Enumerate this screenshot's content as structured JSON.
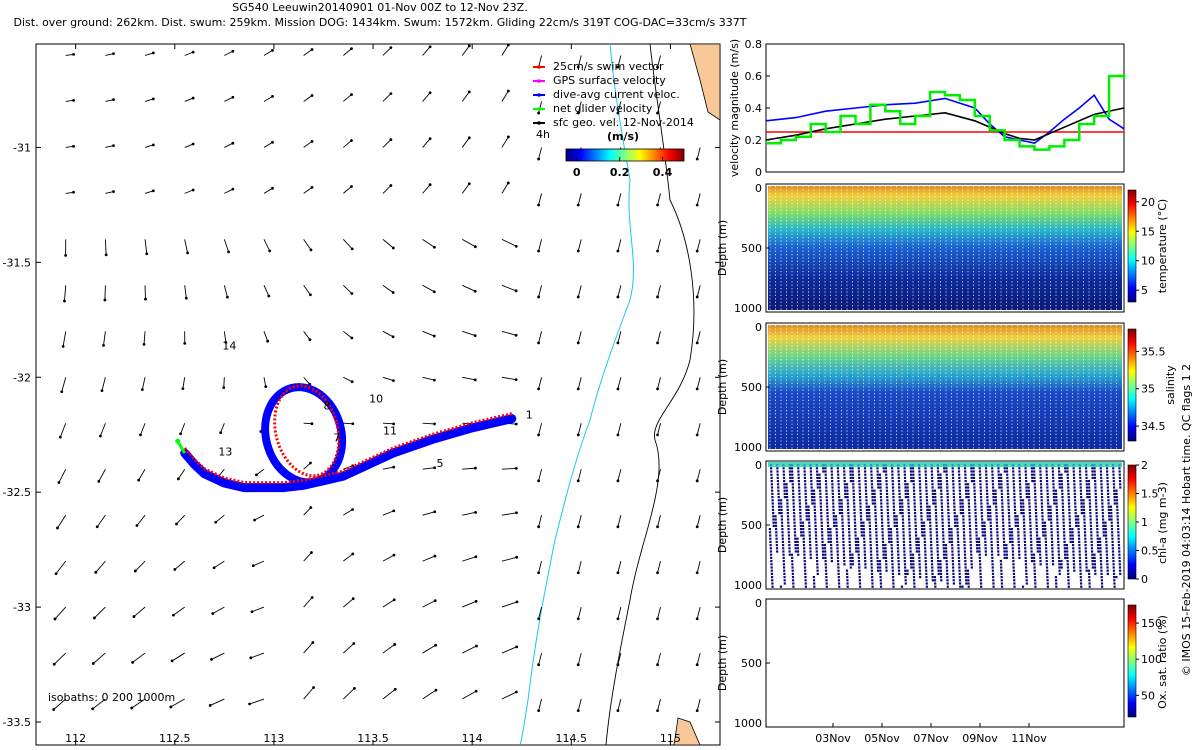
{
  "header": {
    "title_line1": "SG540 Leeuwin20140901 01-Nov 00Z to 12-Nov 23Z.",
    "title_line2": "Dist. over ground: 262km. Dist. swum: 259km. Mission DOG: 1434km. Swum: 1572km. Gliding 22cm/s 319T COG-DAC=33cm/s 337T"
  },
  "side_note": "© IMOS 15-Feb-2019 04:03:14 Hobart time. QC flags 1 2",
  "chart_data": [
    {
      "type": "map",
      "id": "track_map",
      "xticks": [
        112,
        112.5,
        113,
        113.5,
        114,
        114.5,
        115
      ],
      "yticks": [
        -31,
        -31.5,
        -32,
        -32.5,
        -33,
        -33.5
      ],
      "xlim": [
        111.8,
        115.25
      ],
      "ylim": [
        -33.6,
        -30.55
      ],
      "legend": [
        {
          "label": "25cm/s swim vector",
          "color": "#ff0000"
        },
        {
          "label": "GPS surface velocity",
          "color": "#ff00ff"
        },
        {
          "label": "dive-avg current veloc.",
          "color": "#0000ff"
        },
        {
          "label": "net glider velocity",
          "color": "#00ff00"
        },
        {
          "label": "sfc geo. vel. 12-Nov-2014",
          "color": "#000000"
        }
      ],
      "interval_label": "4h",
      "colorbar": {
        "label": "(m/s)",
        "ticks": [
          0,
          0.2,
          0.4
        ],
        "range": [
          -0.05,
          0.5
        ]
      },
      "isobaths_label": "isobaths: 0   200  1000m",
      "track": {
        "lon": [
          114.2,
          114.0,
          113.8,
          113.6,
          113.45,
          113.35,
          113.25,
          113.15,
          113.05,
          112.95,
          112.85,
          112.75,
          112.65,
          112.6,
          112.55
        ],
        "lat": [
          -32.18,
          -32.22,
          -32.27,
          -32.33,
          -32.39,
          -32.43,
          -32.45,
          -32.47,
          -32.48,
          -32.48,
          -32.48,
          -32.46,
          -32.42,
          -32.38,
          -32.33
        ]
      },
      "loop": {
        "center_lon": 113.15,
        "center_lat": -32.25,
        "radius_deg": 0.2
      },
      "day_labels": [
        {
          "text": "1",
          "lon": 114.27,
          "lat": -32.18
        },
        {
          "text": "5",
          "lon": 113.82,
          "lat": -32.39
        },
        {
          "text": "7",
          "lon": 113.3,
          "lat": -32.28
        },
        {
          "text": "8",
          "lon": 113.25,
          "lat": -32.14
        },
        {
          "text": "10",
          "lon": 113.48,
          "lat": -32.11
        },
        {
          "text": "11",
          "lon": 113.55,
          "lat": -32.25
        },
        {
          "text": "13",
          "lon": 112.72,
          "lat": -32.34
        },
        {
          "text": "14",
          "lon": 112.74,
          "lat": -31.88
        }
      ]
    },
    {
      "type": "line",
      "id": "velocity_panel",
      "ylabel": "velocity magnitude (m/s)",
      "yticks": [
        0,
        0.2,
        0.4,
        0.6,
        0.8
      ],
      "ylim": [
        0,
        0.8
      ],
      "xlim": [
        0,
        12
      ],
      "series": [
        {
          "color": "#ff0000",
          "x": [
            0,
            12
          ],
          "y": [
            0.25,
            0.25
          ]
        },
        {
          "color": "#0000ff",
          "x": [
            0,
            1,
            2,
            3,
            4,
            5,
            6,
            7,
            7.5,
            8,
            8.5,
            9,
            9.5,
            10,
            10.5,
            11,
            11.5,
            12
          ],
          "y": [
            0.32,
            0.34,
            0.38,
            0.4,
            0.42,
            0.43,
            0.46,
            0.4,
            0.3,
            0.22,
            0.2,
            0.18,
            0.25,
            0.33,
            0.4,
            0.48,
            0.33,
            0.27
          ]
        },
        {
          "color": "#000000",
          "x": [
            0,
            1,
            2,
            3,
            4,
            5,
            6,
            7,
            8,
            8.5,
            9,
            10,
            11,
            12
          ],
          "y": [
            0.2,
            0.23,
            0.27,
            0.3,
            0.33,
            0.35,
            0.37,
            0.32,
            0.24,
            0.21,
            0.2,
            0.28,
            0.36,
            0.4
          ]
        },
        {
          "color": "#00ee00",
          "x": [
            0,
            0.5,
            1,
            1.5,
            2,
            2.5,
            3,
            3.5,
            4,
            4.5,
            5,
            5.5,
            6,
            6.5,
            7,
            7.5,
            8,
            8.5,
            9,
            9.5,
            10,
            10.5,
            11,
            11.5,
            12
          ],
          "y": [
            0.18,
            0.2,
            0.22,
            0.3,
            0.25,
            0.35,
            0.3,
            0.42,
            0.38,
            0.3,
            0.35,
            0.5,
            0.48,
            0.45,
            0.35,
            0.26,
            0.2,
            0.16,
            0.14,
            0.16,
            0.2,
            0.3,
            0.35,
            0.6,
            0.58
          ]
        }
      ]
    },
    {
      "type": "heatmap",
      "id": "temperature_panel",
      "ylabel": "Depth (m)",
      "yticks": [
        0,
        500,
        1000
      ],
      "colorbar": {
        "label": "temperature (°C)",
        "ticks": [
          5,
          10,
          15,
          20
        ],
        "range": [
          3,
          22
        ]
      }
    },
    {
      "type": "heatmap",
      "id": "salinity_panel",
      "ylabel": "Depth (m)",
      "yticks": [
        0,
        500,
        1000
      ],
      "colorbar": {
        "label": "salinity",
        "ticks": [
          34.5,
          35,
          35.5
        ],
        "range": [
          34.3,
          35.8
        ]
      }
    },
    {
      "type": "heatmap",
      "id": "chla_panel",
      "ylabel": "Depth (m)",
      "yticks": [
        0,
        500,
        1000
      ],
      "colorbar": {
        "label": "chl-a (mg m-3)",
        "ticks": [
          0,
          0.5,
          1,
          1.5,
          2
        ],
        "range": [
          0,
          2
        ]
      }
    },
    {
      "type": "heatmap",
      "id": "oxygen_panel",
      "ylabel": "Depth (m)",
      "yticks": [
        0,
        500,
        1000
      ],
      "xticks": [
        "03Nov",
        "05Nov",
        "07Nov",
        "09Nov",
        "11Nov"
      ],
      "colorbar": {
        "label": "Ox. sat. ratio (%)",
        "ticks": [
          50,
          100,
          150
        ],
        "range": [
          20,
          175
        ]
      }
    }
  ]
}
